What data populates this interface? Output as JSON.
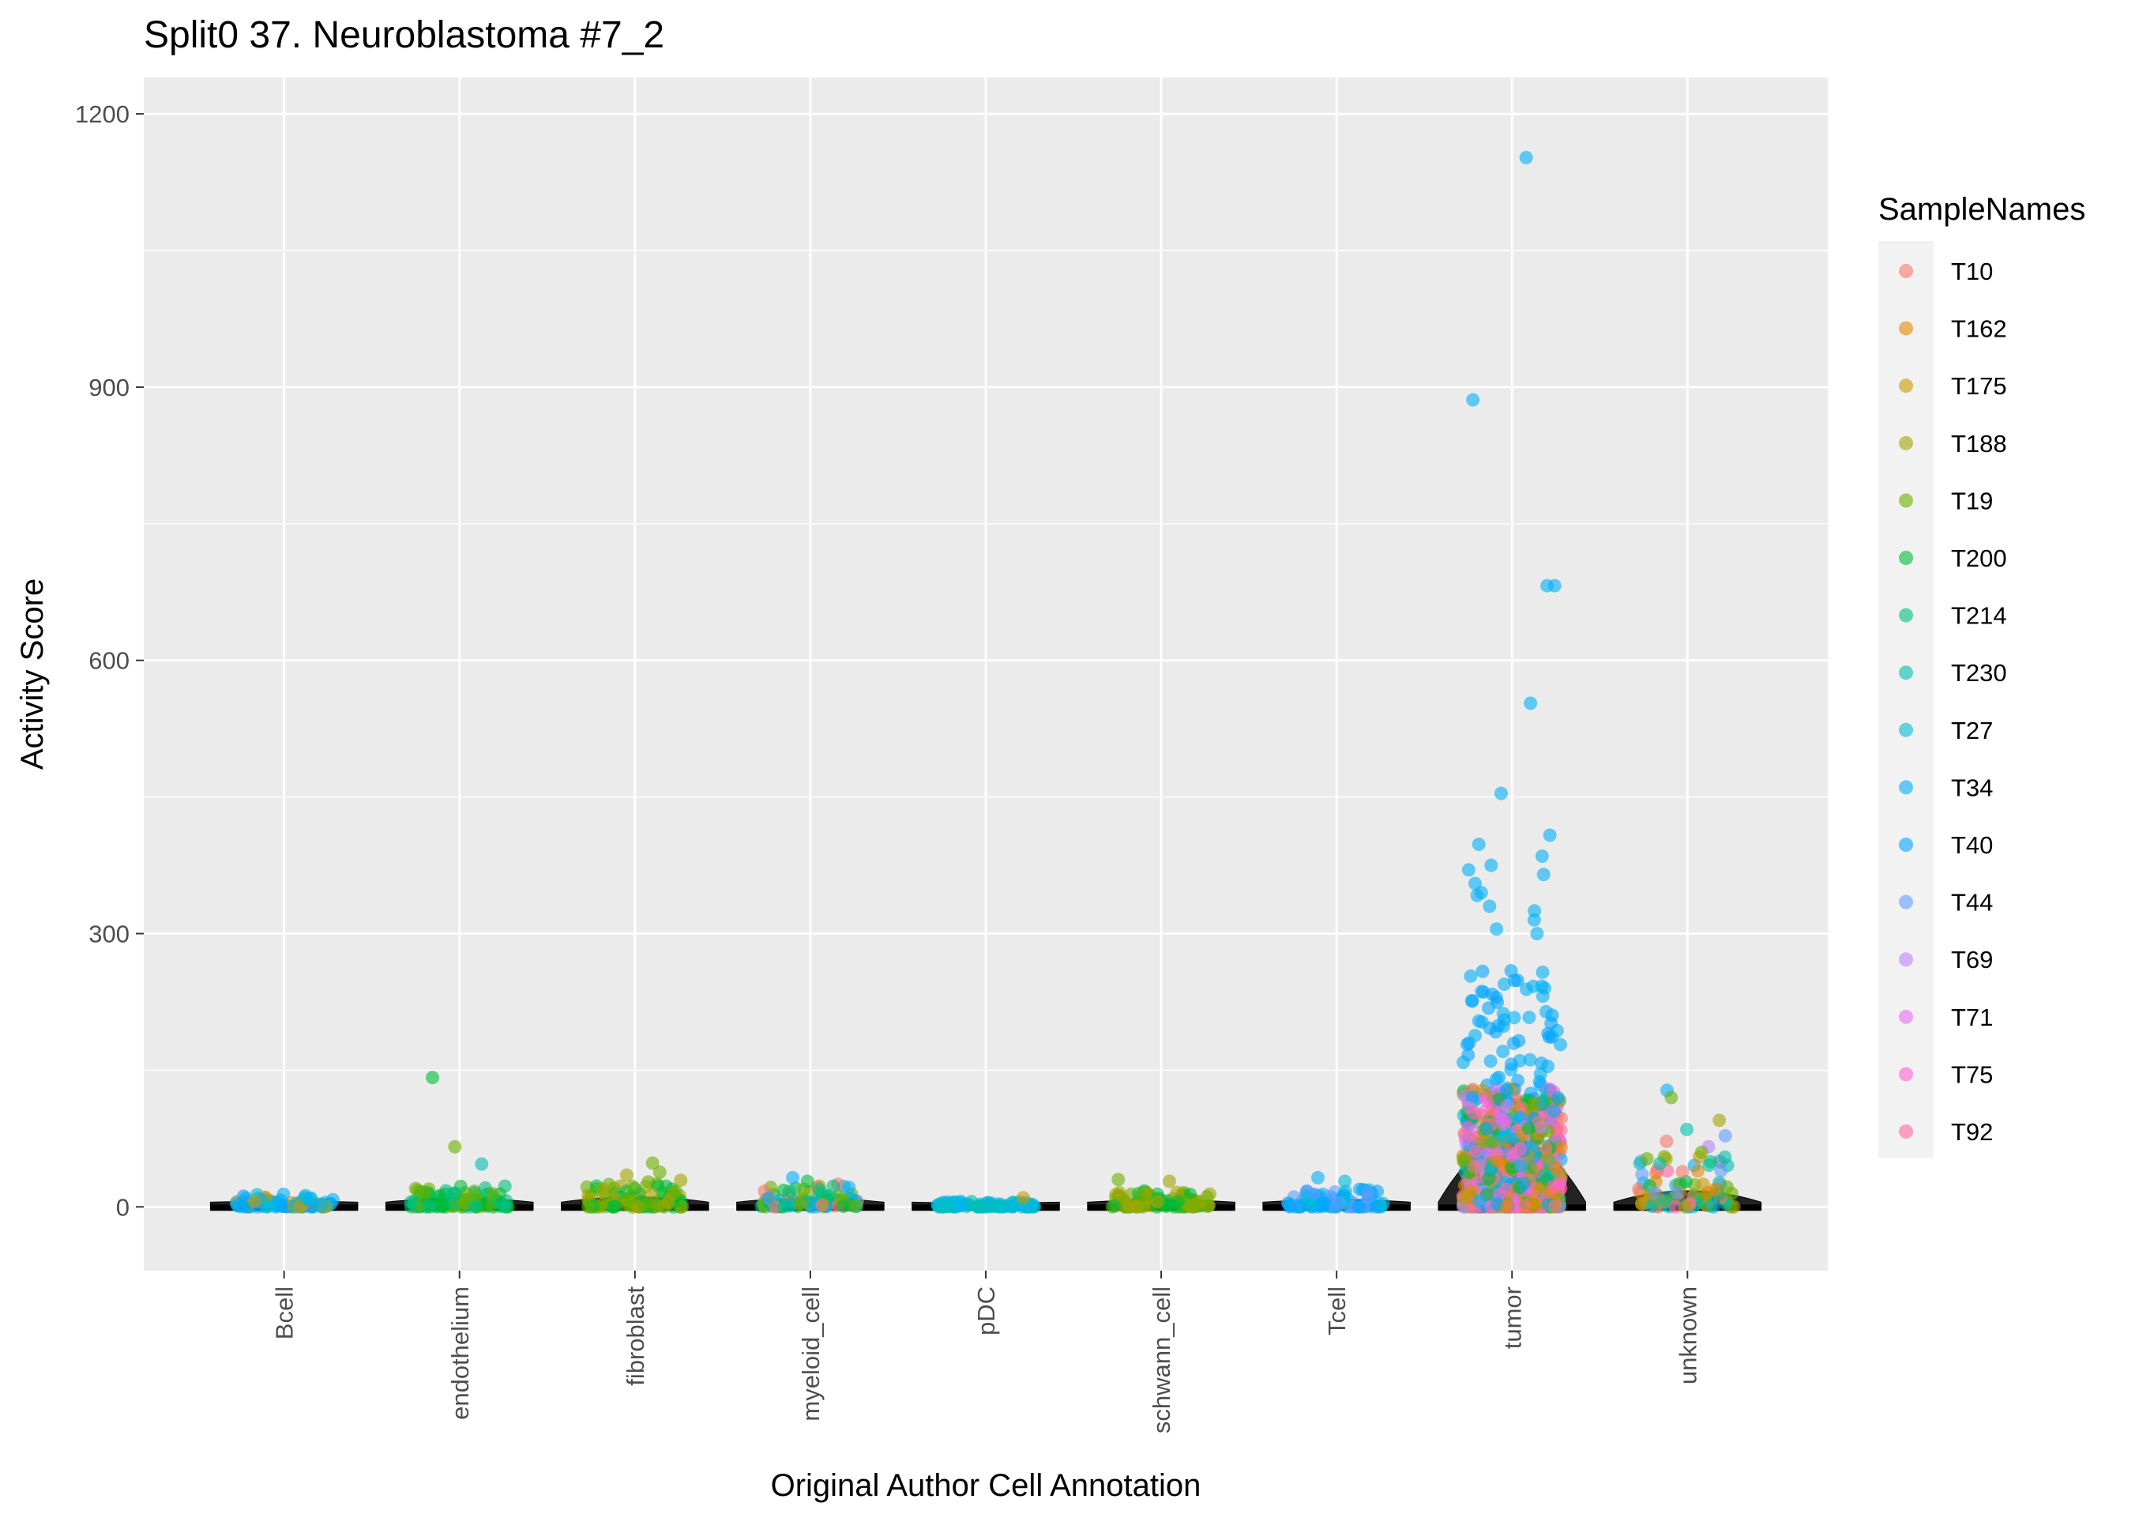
{
  "chart_data": {
    "type": "scatter",
    "subtype": "jitter-strip with violin",
    "title": "Split0 37. Neuroblastoma #7_2",
    "xlabel": "Original Author Cell Annotation",
    "ylabel": "Activity Score",
    "ylim": [
      -70,
      1240
    ],
    "yticks": [
      0,
      300,
      600,
      900,
      1200
    ],
    "categories": [
      "Bcell",
      "endothelium",
      "fibroblast",
      "myeloid_cell",
      "pDC",
      "schwann_cell",
      "Tcell",
      "tumor",
      "unknown"
    ],
    "grid": true,
    "legend": {
      "title": "SampleNames",
      "position": "right",
      "entries": [
        "T10",
        "T162",
        "T175",
        "T188",
        "T19",
        "T200",
        "T214",
        "T230",
        "T27",
        "T34",
        "T40",
        "T44",
        "T69",
        "T71",
        "T75",
        "T92"
      ],
      "colors": [
        "#F8766D",
        "#E58700",
        "#C99800",
        "#A3A500",
        "#6BB100",
        "#00BA38",
        "#00BF7D",
        "#00C0AF",
        "#00BCD8",
        "#00B0F6",
        "#00A5FF",
        "#619CFF",
        "#B983FF",
        "#E76BF3",
        "#FD61D1",
        "#FF67A4"
      ]
    },
    "notable_points": [
      {
        "category": "tumor",
        "series": "T34",
        "y": 1152
      },
      {
        "category": "tumor",
        "series": "T34",
        "y": 886
      },
      {
        "category": "tumor",
        "series": "T34",
        "y": 682
      },
      {
        "category": "tumor",
        "series": "T34",
        "y": 682
      },
      {
        "category": "tumor",
        "series": "T34",
        "y": 553
      },
      {
        "category": "tumor",
        "series": "T34",
        "y": 454
      },
      {
        "category": "tumor",
        "series": "T34",
        "y": 408
      },
      {
        "category": "tumor",
        "series": "T34",
        "y": 398
      },
      {
        "category": "tumor",
        "series": "T34",
        "y": 385
      },
      {
        "category": "tumor",
        "series": "T34",
        "y": 375
      },
      {
        "category": "tumor",
        "series": "T34",
        "y": 370
      },
      {
        "category": "tumor",
        "series": "T34",
        "y": 365
      },
      {
        "category": "tumor",
        "series": "T34",
        "y": 355
      },
      {
        "category": "tumor",
        "series": "T34",
        "y": 345
      },
      {
        "category": "tumor",
        "series": "T34",
        "y": 342
      },
      {
        "category": "tumor",
        "series": "T34",
        "y": 330
      },
      {
        "category": "tumor",
        "series": "T34",
        "y": 325
      },
      {
        "category": "tumor",
        "series": "T34",
        "y": 315
      },
      {
        "category": "tumor",
        "series": "T34",
        "y": 305
      },
      {
        "category": "tumor",
        "series": "T34",
        "y": 300
      },
      {
        "category": "endothelium",
        "series": "T200",
        "y": 142
      },
      {
        "category": "endothelium",
        "series": "T19",
        "y": 66
      },
      {
        "category": "endothelium",
        "series": "T230",
        "y": 47
      },
      {
        "category": "fibroblast",
        "series": "T19",
        "y": 48
      },
      {
        "category": "fibroblast",
        "series": "T19",
        "y": 38
      },
      {
        "category": "fibroblast",
        "series": "T188",
        "y": 35
      },
      {
        "category": "myeloid_cell",
        "series": "T34",
        "y": 32
      },
      {
        "category": "myeloid_cell",
        "series": "T200",
        "y": 28
      },
      {
        "category": "pDC",
        "series": "T175",
        "y": 10
      },
      {
        "category": "schwann_cell",
        "series": "T19",
        "y": 30
      },
      {
        "category": "schwann_cell",
        "series": "T188",
        "y": 28
      },
      {
        "category": "Tcell",
        "series": "T34",
        "y": 32
      },
      {
        "category": "Tcell",
        "series": "T27",
        "y": 28
      },
      {
        "category": "unknown",
        "series": "T34",
        "y": 128
      },
      {
        "category": "unknown",
        "series": "T19",
        "y": 120
      },
      {
        "category": "unknown",
        "series": "T188",
        "y": 95
      },
      {
        "category": "unknown",
        "series": "T230",
        "y": 85
      },
      {
        "category": "unknown",
        "series": "T44",
        "y": 78
      },
      {
        "category": "unknown",
        "series": "T10",
        "y": 72
      },
      {
        "category": "unknown",
        "series": "T69",
        "y": 66
      },
      {
        "category": "unknown",
        "series": "T19",
        "y": 60
      }
    ],
    "bulk_ranges": [
      {
        "category": "Bcell",
        "max": 14,
        "series": [
          "T40",
          "T27",
          "T175",
          "T34"
        ]
      },
      {
        "category": "endothelium",
        "max": 25,
        "series": [
          "T200",
          "T19",
          "T214"
        ]
      },
      {
        "category": "fibroblast",
        "max": 30,
        "series": [
          "T19",
          "T188",
          "T200"
        ]
      },
      {
        "category": "myeloid_cell",
        "max": 25,
        "series": [
          "T200",
          "T10",
          "T214",
          "T34",
          "T19"
        ]
      },
      {
        "category": "pDC",
        "max": 6,
        "series": [
          "T27",
          "T230",
          "T34"
        ]
      },
      {
        "category": "schwann_cell",
        "max": 18,
        "series": [
          "T19",
          "T200",
          "T188"
        ]
      },
      {
        "category": "Tcell",
        "max": 20,
        "series": [
          "T34",
          "T27",
          "T40",
          "T44"
        ]
      },
      {
        "category": "tumor",
        "max": 260,
        "series": [
          "T34",
          "T40",
          "T27",
          "T10",
          "T162",
          "T69",
          "T71",
          "T75",
          "T92",
          "T175",
          "T19",
          "T200"
        ]
      },
      {
        "category": "unknown",
        "max": 55,
        "series": [
          "T19",
          "T200",
          "T188",
          "T162",
          "T175",
          "T230",
          "T214",
          "T10",
          "T44",
          "T92",
          "T34"
        ]
      }
    ]
  }
}
